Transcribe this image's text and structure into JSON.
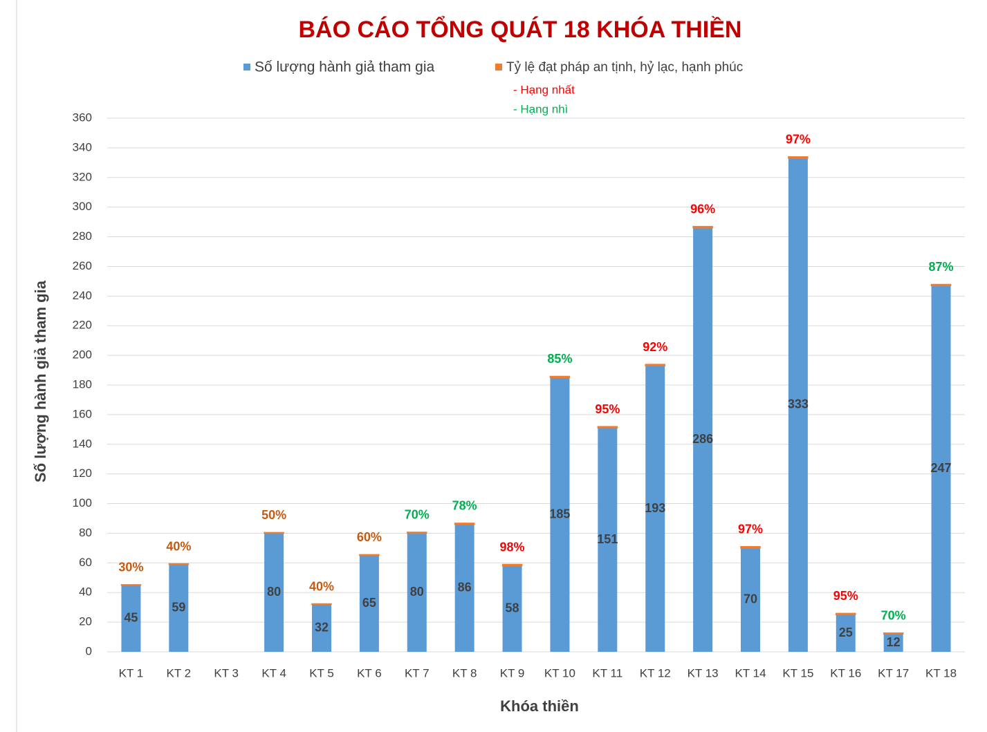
{
  "chart_data": {
    "type": "stacked_bar",
    "title": "BÁO CÁO TỔNG QUÁT 18 KHÓA THIỀN",
    "x_label": "Khóa thiền",
    "y_label": "Số lượng hành giả tham gia",
    "annotations": [
      {
        "text": "- Hạng nhất",
        "color": "#ff0000"
      },
      {
        "text": "- Hạng nhì",
        "color": "#00b050"
      }
    ],
    "categories": [
      "KT 1",
      "KT 2",
      "KT 3",
      "KT 4",
      "KT 5",
      "KT 6",
      "KT 7",
      "KT 8",
      "KT 9",
      "KT 10",
      "KT 11",
      "KT 12",
      "KT 13",
      "KT 14",
      "KT 15",
      "KT 16",
      "KT 17",
      "KT 18"
    ],
    "series": [
      {
        "name": "Số lượng hành giả tham gia",
        "color": "#5b9bd5",
        "values": [
          45,
          59,
          null,
          80,
          32,
          65,
          80,
          86,
          58,
          185,
          151,
          193,
          286,
          70,
          333,
          25,
          12,
          247
        ]
      },
      {
        "name": "Tỷ lệ đạt pháp an tịnh, hỷ lạc, hạnh phúc",
        "color": "#ed7d31",
        "values": [
          0.3,
          0.4,
          null,
          0.5,
          0.4,
          0.6,
          0.7,
          0.78,
          0.98,
          0.85,
          0.95,
          0.92,
          0.96,
          0.97,
          0.97,
          0.95,
          0.7,
          0.87
        ],
        "value_labels": [
          "30%",
          "40%",
          null,
          "50%",
          "40%",
          "60%",
          "70%",
          "78%",
          "98%",
          "85%",
          "95%",
          "92%",
          "96%",
          "97%",
          "97%",
          "95%",
          "70%",
          "87%"
        ],
        "label_colors": [
          "#c55a11",
          "#c55a11",
          null,
          "#c55a11",
          "#c55a11",
          "#c55a11",
          "#00b050",
          "#00b050",
          "#ff0000",
          "#00b050",
          "#ff0000",
          "#ff0000",
          "#ff0000",
          "#ff0000",
          "#ff0000",
          "#ff0000",
          "#00b050",
          "#00b050"
        ]
      }
    ],
    "ylim": [
      0,
      360
    ],
    "yticks": [
      0,
      20,
      40,
      60,
      80,
      100,
      120,
      140,
      160,
      180,
      200,
      220,
      240,
      260,
      280,
      300,
      320,
      340,
      360
    ],
    "grid": true
  }
}
